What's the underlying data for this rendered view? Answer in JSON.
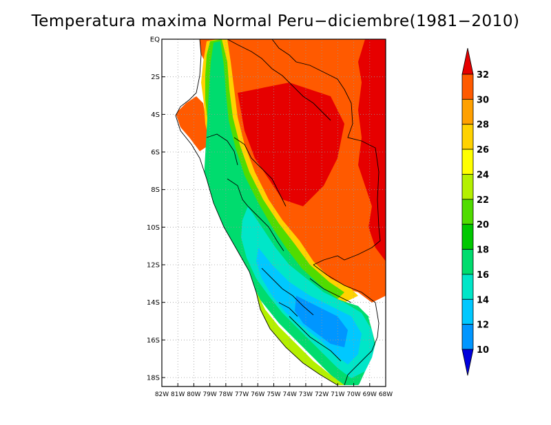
{
  "title": "Temperatura maxima Normal Peru−diciembre(1981−2010)",
  "map": {
    "lat_ticks": [
      "EQ",
      "2S",
      "4S",
      "6S",
      "8S",
      "10S",
      "12S",
      "14S",
      "16S",
      "18S"
    ],
    "lon_ticks": [
      "82W",
      "81W",
      "80W",
      "79W",
      "78W",
      "77W",
      "76W",
      "75W",
      "74W",
      "73W",
      "72W",
      "71W",
      "70W",
      "69W",
      "68W"
    ],
    "gridlines": true
  },
  "colorbar": {
    "labels": [
      "32",
      "30",
      "28",
      "26",
      "24",
      "22",
      "20",
      "18",
      "16",
      "14",
      "12",
      "10"
    ],
    "colors": [
      "#e60000",
      "#ff5a00",
      "#ffa000",
      "#ffd200",
      "#ffff00",
      "#b4f000",
      "#50dc00",
      "#00c800",
      "#00dc6e",
      "#00e6c8",
      "#00c8ff",
      "#0096ff",
      "#0050ff",
      "#0000dc"
    ]
  }
}
